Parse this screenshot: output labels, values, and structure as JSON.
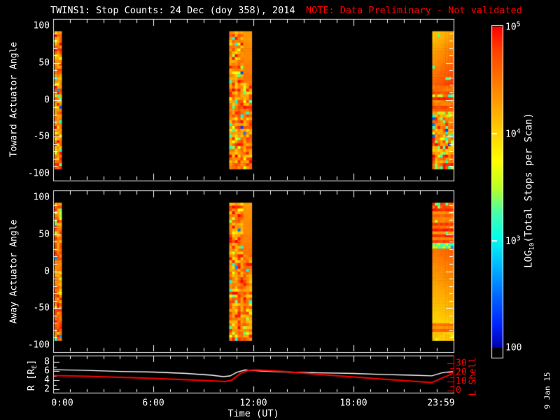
{
  "title": {
    "main": "TWINS1: Stop Counts: 24 Dec (doy 358), 2014",
    "note": "NOTE: Data Preliminary - Not validated"
  },
  "timestamp": "9 Jan 15",
  "colors": {
    "background": "#000000",
    "foreground": "#FFFFFF",
    "alert": "#FF0000",
    "r_line": "#FFFFFF",
    "l_shell_line": "#FF0000"
  },
  "xaxis": {
    "label": "Time (UT)",
    "tick_labels": [
      "0:00",
      "6:00",
      "12:00",
      "18:00",
      "23:59"
    ],
    "tick_hours": [
      0,
      6,
      12,
      18,
      23.983
    ]
  },
  "panels": {
    "toward": {
      "ylabel": "Toward Actuator Angle",
      "ytick_labels": [
        "100",
        "50",
        "0",
        "-50",
        "-100"
      ],
      "ytick_values": [
        100,
        50,
        0,
        -50,
        -100
      ]
    },
    "away": {
      "ylabel": "Away Actuator Angle",
      "ytick_labels": [
        "100",
        "50",
        "0",
        "-50",
        "-100"
      ],
      "ytick_values": [
        100,
        50,
        0,
        -50,
        -100
      ]
    },
    "bottom": {
      "ylabel_left_pre": "R [R",
      "ylabel_left_sub": "E",
      "ylabel_left_post": "]",
      "ylabel_right": "L Shell",
      "left_tick_labels": [
        "8",
        "6",
        "4",
        "2"
      ],
      "left_tick_values": [
        8,
        6,
        4,
        2
      ],
      "right_tick_labels": [
        "30",
        "20",
        "10",
        "0"
      ],
      "right_tick_values": [
        30,
        20,
        10,
        0
      ]
    }
  },
  "colorbar": {
    "label_pre": "LOG",
    "label_sub": "10",
    "label_post": "(Total Stops per Scan)",
    "ticks": [
      {
        "base": "10",
        "exp": "5",
        "log10": 5
      },
      {
        "base": "10",
        "exp": "4",
        "log10": 4
      },
      {
        "base": "10",
        "exp": "3",
        "log10": 3
      },
      {
        "base": "100",
        "exp": "",
        "log10": 2
      }
    ]
  },
  "chart_data": {
    "type": "heatmap",
    "title": "TWINS1: Stop Counts: 24 Dec (doy 358), 2014",
    "xlabel": "Time (UT)",
    "x_range_hours": [
      0,
      24
    ],
    "colorbar": {
      "label": "LOG10(Total Stops per Scan)",
      "scale": "log10",
      "range": [
        2,
        5
      ]
    },
    "spectrogram_panels": [
      {
        "name": "Toward Actuator Angle",
        "ylabel": "Toward Actuator Angle",
        "ylim": [
          -100,
          100
        ],
        "angle_extent": [
          -94,
          93
        ],
        "data_intervals_hours": [
          [
            0.08,
            0.5
          ],
          [
            10.55,
            11.9
          ],
          [
            22.72,
            23.983
          ]
        ],
        "typical_log10_value": 4.6
      },
      {
        "name": "Away Actuator Angle",
        "ylabel": "Away Actuator Angle",
        "ylim": [
          -100,
          100
        ],
        "angle_extent": [
          -94,
          93
        ],
        "data_intervals_hours": [
          [
            0.08,
            0.5
          ],
          [
            10.55,
            11.9
          ],
          [
            22.72,
            23.983
          ]
        ],
        "typical_log10_value": 4.6
      }
    ],
    "line_panel": {
      "series": [
        {
          "name": "R [RE]",
          "color": "#FFFFFF",
          "axis": "left",
          "ylim": [
            2,
            8
          ],
          "t_hours": [
            0,
            2,
            4,
            6,
            8,
            9.5,
            10.2,
            10.6,
            11,
            11.5,
            12.5,
            14,
            16,
            18,
            20,
            21.5,
            22.7,
            23.3,
            23.98
          ],
          "values": [
            6.3,
            6.15,
            5.9,
            5.77,
            5.46,
            5.08,
            4.77,
            4.92,
            5.7,
            6.23,
            6.0,
            5.77,
            5.6,
            5.46,
            5.2,
            5.08,
            4.95,
            5.6,
            5.9
          ]
        },
        {
          "name": "L Shell",
          "color": "#FF0000",
          "axis": "right",
          "ylim": [
            0,
            30
          ],
          "t_hours": [
            0,
            2,
            4,
            6,
            8,
            9.5,
            10.3,
            10.7,
            11.2,
            11.7,
            12.2,
            13,
            14,
            16,
            18,
            20,
            21.5,
            22.7,
            23.3,
            23.98
          ],
          "values": [
            16.5,
            15.8,
            14.6,
            13.5,
            11.9,
            10.8,
            10.0,
            11.5,
            18.5,
            22.3,
            22.7,
            21.9,
            20.8,
            17.7,
            15.0,
            12.3,
            10.4,
            8.8,
            13.8,
            18.8
          ]
        }
      ]
    }
  }
}
